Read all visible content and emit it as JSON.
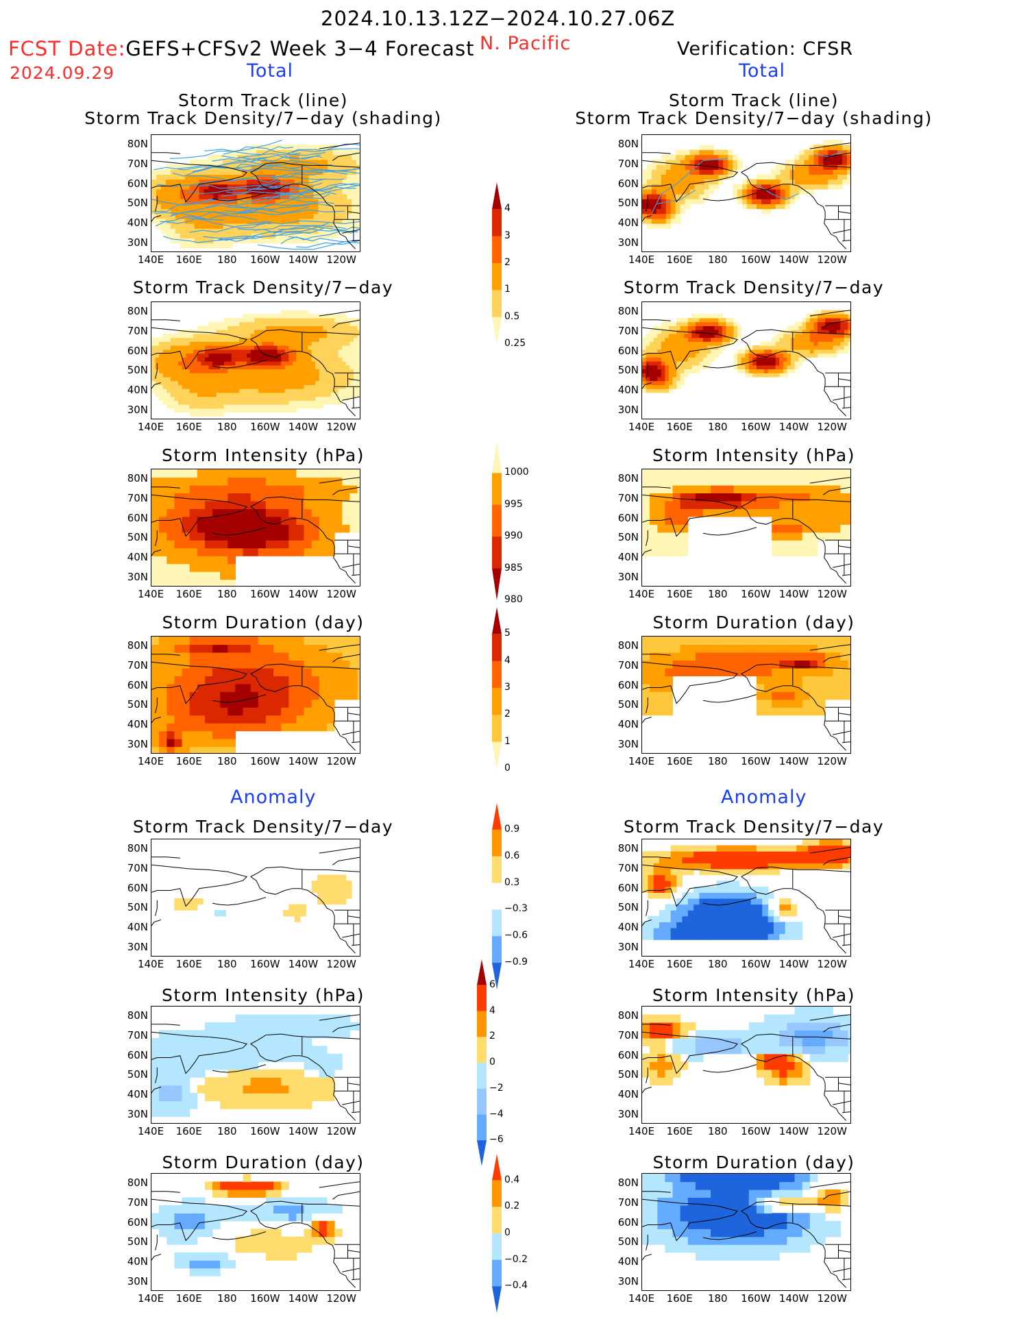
{
  "header": {
    "date_range": "2024.10.13.12Z−2024.10.27.06Z",
    "fcst_label": "FCST Date:",
    "fcst_model": "GEFS+CFSv2 Week 3−4 Forecast",
    "fcst_date": "2024.09.29",
    "region": "N. Pacific",
    "verification": "Verification: CFSR",
    "left_section": "Total",
    "right_section": "Total"
  },
  "sections": {
    "anomaly_left": "Anomaly",
    "anomaly_right": "Anomaly"
  },
  "panel_titles": {
    "track_line": "Storm Track (line)",
    "track_shading": "Storm Track Density/7−day (shading)",
    "density": "Storm Track Density/7−day",
    "intensity": "Storm Intensity (hPa)",
    "duration": "Storm Duration (day)"
  },
  "axes": {
    "y_ticks": [
      "80N",
      "70N",
      "60N",
      "50N",
      "40N",
      "30N"
    ],
    "x_ticks": [
      "140E",
      "160E",
      "180",
      "160W",
      "140W",
      "120W"
    ]
  },
  "colorbars": {
    "density_total": {
      "labels": [
        "4",
        "3",
        "2",
        "1",
        "0.5",
        "0.25"
      ],
      "colors": [
        "#a50000",
        "#dc2800",
        "#ff6400",
        "#ffa000",
        "#ffd25a",
        "#fff5b4"
      ]
    },
    "intensity_total": {
      "labels": [
        "1000",
        "995",
        "990",
        "985",
        "980"
      ],
      "colors": [
        "#fff5b4",
        "#ffa000",
        "#ff6400",
        "#dc2800",
        "#a50000"
      ]
    },
    "duration_total": {
      "labels": [
        "5",
        "4",
        "3",
        "2",
        "1",
        "0"
      ],
      "colors": [
        "#a50000",
        "#dc2800",
        "#ff6400",
        "#ffa000",
        "#ffc83c",
        "#fff5b4"
      ]
    },
    "density_anom": {
      "labels": [
        "0.9",
        "0.6",
        "0.3",
        "−0.3",
        "−0.6",
        "−0.9"
      ],
      "colors": [
        "#ff3c00",
        "#ff9600",
        "#ffdc6e",
        "#ffffff",
        "#b4e6ff",
        "#64aaff",
        "#1e64dc"
      ]
    },
    "intensity_anom": {
      "labels": [
        "6",
        "4",
        "2",
        "0",
        "−2",
        "−4",
        "−6"
      ],
      "colors": [
        "#a50000",
        "#ff3c00",
        "#ff9600",
        "#ffdc6e",
        "#b4e6ff",
        "#96c8ff",
        "#64aaff",
        "#1e64dc"
      ]
    },
    "duration_anom": {
      "labels": [
        "0.4",
        "0.2",
        "0",
        "−0.2",
        "−0.4"
      ],
      "colors": [
        "#ff3c00",
        "#ff9600",
        "#ffdc6e",
        "#b4e6ff",
        "#64aaff",
        "#1e64dc"
      ]
    }
  }
}
